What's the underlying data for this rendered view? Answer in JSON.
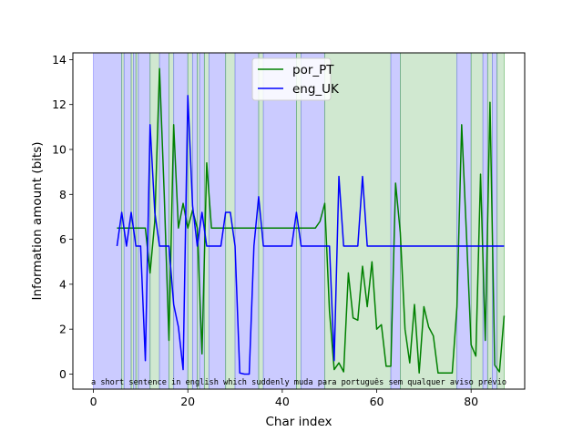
{
  "chart_data": {
    "type": "line",
    "title": "",
    "xlabel": "Char index",
    "ylabel": "Information amount (bits)",
    "xlim": [
      -4.35,
      91.35
    ],
    "ylim": [
      -0.67,
      14.3
    ],
    "xticks": [
      0,
      20,
      40,
      60,
      80
    ],
    "yticks": [
      0,
      2,
      4,
      6,
      8,
      10,
      12,
      14
    ],
    "grid": false,
    "legend_position": "top-center",
    "sentence": "a short sentence in english which suddenly muda para português sem qualquer aviso prévio",
    "colors": {
      "por_PT": "#008000",
      "eng_UK": "#0000ff",
      "region_eng": "#8c8cff",
      "region_por": "#64b464"
    },
    "series": [
      {
        "name": "por_PT",
        "color": "#008000",
        "x": [
          5,
          6,
          7,
          8,
          9,
          10,
          11,
          12,
          13,
          14,
          15,
          16,
          17,
          18,
          19,
          20,
          21,
          22,
          23,
          24,
          25,
          26,
          27,
          28,
          29,
          30,
          31,
          32,
          33,
          34,
          35,
          36,
          37,
          38,
          39,
          40,
          41,
          42,
          43,
          44,
          45,
          46,
          47,
          48,
          49,
          50,
          51,
          52,
          53,
          54,
          55,
          56,
          57,
          58,
          59,
          60,
          61,
          62,
          63,
          64,
          65,
          66,
          67,
          68,
          69,
          70,
          71,
          72,
          73,
          74,
          75,
          76,
          77,
          78,
          79,
          80,
          81,
          82,
          83,
          84,
          85,
          86,
          87
        ],
        "y": [
          6.5,
          6.5,
          6.5,
          6.5,
          6.5,
          6.5,
          6.5,
          4.5,
          6.8,
          13.6,
          8.0,
          1.5,
          11.1,
          6.5,
          7.6,
          6.5,
          7.3,
          6.5,
          0.9,
          9.4,
          6.5,
          6.5,
          6.5,
          6.5,
          6.5,
          6.5,
          6.5,
          6.5,
          6.5,
          6.5,
          6.5,
          6.5,
          6.5,
          6.5,
          6.5,
          6.5,
          6.5,
          6.5,
          6.5,
          6.5,
          6.5,
          6.5,
          6.5,
          6.8,
          7.6,
          2.8,
          0.2,
          0.5,
          0.1,
          4.5,
          2.5,
          2.4,
          4.8,
          3.0,
          5.0,
          2.0,
          2.2,
          0.35,
          0.35,
          8.5,
          6.3,
          2.0,
          0.5,
          3.1,
          0.05,
          3.0,
          2.1,
          1.7,
          0.05,
          0.05,
          0.05,
          0.05,
          3.0,
          11.1,
          6.3,
          1.3,
          0.8,
          8.9,
          1.5,
          12.1,
          0.4,
          0.1,
          2.6
        ]
      },
      {
        "name": "eng_UK",
        "color": "#0000ff",
        "x": [
          5,
          6,
          7,
          8,
          9,
          10,
          11,
          12,
          13,
          14,
          15,
          16,
          17,
          18,
          19,
          20,
          21,
          22,
          23,
          24,
          25,
          26,
          27,
          28,
          29,
          30,
          31,
          32,
          33,
          34,
          35,
          36,
          37,
          38,
          39,
          40,
          41,
          42,
          43,
          44,
          45,
          46,
          47,
          48,
          49,
          50,
          51,
          52,
          53,
          54,
          55,
          56,
          57,
          58,
          59,
          60,
          61,
          62,
          63,
          64,
          65,
          66,
          67,
          68,
          69,
          70,
          71,
          72,
          73,
          74,
          75,
          76,
          77,
          78,
          79,
          80,
          81,
          82,
          83,
          84,
          85,
          86,
          87
        ],
        "y": [
          5.7,
          7.2,
          5.7,
          7.2,
          5.7,
          5.7,
          0.6,
          11.1,
          7.2,
          5.7,
          5.7,
          5.7,
          3.1,
          2.1,
          0.2,
          12.4,
          7.5,
          5.7,
          7.2,
          5.7,
          5.7,
          5.7,
          5.7,
          7.2,
          7.2,
          5.7,
          0.05,
          0.0,
          0.0,
          5.7,
          7.9,
          5.7,
          5.7,
          5.7,
          5.7,
          5.7,
          5.7,
          5.7,
          7.2,
          5.7,
          5.7,
          5.7,
          5.7,
          5.7,
          5.7,
          5.7,
          0.6,
          8.8,
          5.7,
          5.7,
          5.7,
          5.7,
          8.8,
          5.7,
          5.7,
          5.7,
          5.7,
          5.7,
          5.7,
          5.7,
          5.7,
          5.7,
          5.7,
          5.7,
          5.7,
          5.7,
          5.7,
          5.7,
          5.7,
          5.7,
          5.7,
          5.7,
          5.7,
          5.7,
          5.7,
          5.7,
          5.7,
          5.7,
          5.7,
          5.7,
          5.7,
          5.7,
          5.7
        ]
      }
    ],
    "regions": [
      {
        "x0": 0,
        "x1": 6,
        "lang": "eng"
      },
      {
        "x0": 6,
        "x1": 6.5,
        "lang": "por"
      },
      {
        "x0": 6.5,
        "x1": 8,
        "lang": "eng"
      },
      {
        "x0": 8,
        "x1": 8.5,
        "lang": "por"
      },
      {
        "x0": 8.5,
        "x1": 9,
        "lang": "eng"
      },
      {
        "x0": 9,
        "x1": 9.5,
        "lang": "por"
      },
      {
        "x0": 9.5,
        "x1": 12,
        "lang": "eng"
      },
      {
        "x0": 12,
        "x1": 14,
        "lang": "por"
      },
      {
        "x0": 14,
        "x1": 16,
        "lang": "eng"
      },
      {
        "x0": 16,
        "x1": 17,
        "lang": "por"
      },
      {
        "x0": 17,
        "x1": 20,
        "lang": "eng"
      },
      {
        "x0": 20,
        "x1": 21,
        "lang": "por"
      },
      {
        "x0": 21,
        "x1": 22,
        "lang": "eng"
      },
      {
        "x0": 22,
        "x1": 22.5,
        "lang": "por"
      },
      {
        "x0": 22.5,
        "x1": 23.5,
        "lang": "eng"
      },
      {
        "x0": 23.5,
        "x1": 24.5,
        "lang": "por"
      },
      {
        "x0": 24.5,
        "x1": 28,
        "lang": "eng"
      },
      {
        "x0": 28,
        "x1": 30,
        "lang": "por"
      },
      {
        "x0": 30,
        "x1": 35,
        "lang": "eng"
      },
      {
        "x0": 35,
        "x1": 36,
        "lang": "por"
      },
      {
        "x0": 36,
        "x1": 43,
        "lang": "eng"
      },
      {
        "x0": 43,
        "x1": 44,
        "lang": "por"
      },
      {
        "x0": 44,
        "x1": 49,
        "lang": "eng"
      },
      {
        "x0": 49,
        "x1": 63,
        "lang": "por"
      },
      {
        "x0": 63,
        "x1": 65,
        "lang": "eng"
      },
      {
        "x0": 65,
        "x1": 77,
        "lang": "por"
      },
      {
        "x0": 77,
        "x1": 80,
        "lang": "eng"
      },
      {
        "x0": 80,
        "x1": 82.5,
        "lang": "por"
      },
      {
        "x0": 82.5,
        "x1": 83.5,
        "lang": "eng"
      },
      {
        "x0": 83.5,
        "x1": 84.5,
        "lang": "por"
      },
      {
        "x0": 84.5,
        "x1": 85.5,
        "lang": "eng"
      },
      {
        "x0": 85.5,
        "x1": 87,
        "lang": "por"
      }
    ]
  }
}
